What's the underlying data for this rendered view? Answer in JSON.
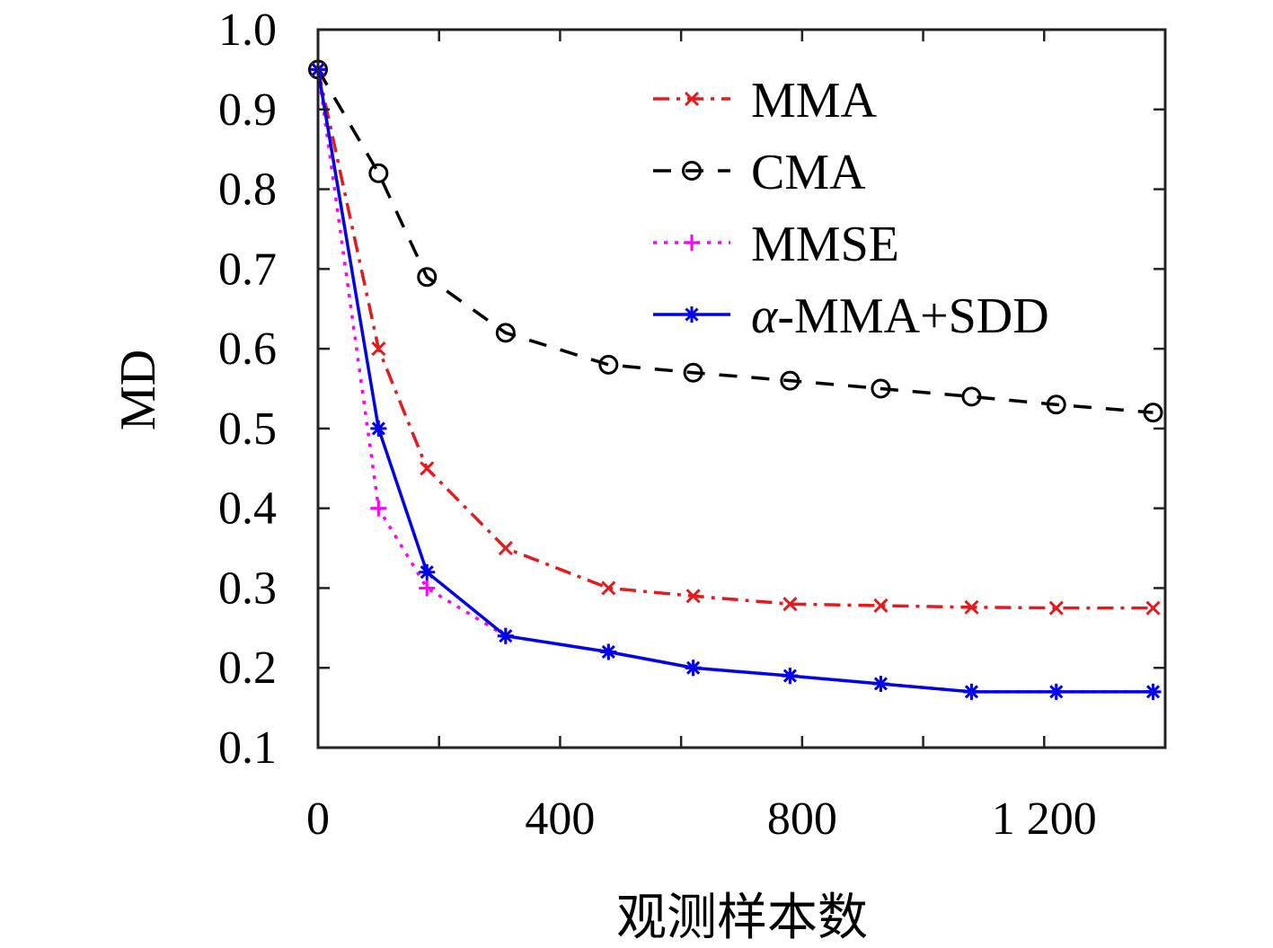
{
  "chart_data": {
    "type": "line",
    "title": "",
    "xlabel": "观测样本数",
    "ylabel": "MD",
    "xlim": [
      0,
      1400
    ],
    "ylim": [
      0.1,
      1.0
    ],
    "x_ticks": [
      0,
      400,
      800,
      1200
    ],
    "x_tick_labels": [
      "0",
      "400",
      "800",
      "1 200"
    ],
    "y_ticks": [
      0.1,
      0.2,
      0.3,
      0.4,
      0.5,
      0.6,
      0.7,
      0.8,
      0.9,
      1.0
    ],
    "y_tick_labels": [
      "0.1",
      "0.2",
      "0.3",
      "0.4",
      "0.5",
      "0.6",
      "0.7",
      "0.8",
      "0.9",
      "1.0"
    ],
    "grid": false,
    "legend_position": "top-right",
    "series": [
      {
        "name": "MMA",
        "color": "#e41a1c",
        "line_style": "dashdot",
        "marker": "x",
        "x": [
          0,
          100,
          180,
          310,
          480,
          620,
          780,
          930,
          1080,
          1220,
          1380
        ],
        "y": [
          0.95,
          0.6,
          0.45,
          0.35,
          0.3,
          0.29,
          0.28,
          0.278,
          0.276,
          0.275,
          0.275
        ]
      },
      {
        "name": "CMA",
        "color": "#000000",
        "line_style": "dashed",
        "marker": "o",
        "x": [
          0,
          100,
          180,
          310,
          480,
          620,
          780,
          930,
          1080,
          1220,
          1380
        ],
        "y": [
          0.95,
          0.82,
          0.69,
          0.62,
          0.58,
          0.57,
          0.56,
          0.55,
          0.54,
          0.53,
          0.52
        ]
      },
      {
        "name": "MMSE",
        "color": "#ff00ff",
        "line_style": "dotted",
        "marker": "+",
        "x": [
          0,
          100,
          180,
          310,
          480,
          620,
          780,
          930,
          1080,
          1220,
          1380
        ],
        "y": [
          0.95,
          0.4,
          0.3,
          0.24,
          0.22,
          0.2,
          0.19,
          0.18,
          0.17,
          0.17,
          0.17
        ]
      },
      {
        "name": "α-MMA+SDD",
        "color": "#0000ee",
        "line_style": "solid",
        "marker": "*",
        "x": [
          0,
          100,
          180,
          310,
          480,
          620,
          780,
          930,
          1080,
          1220,
          1380
        ],
        "y": [
          0.95,
          0.5,
          0.32,
          0.24,
          0.22,
          0.2,
          0.19,
          0.18,
          0.17,
          0.17,
          0.17
        ]
      }
    ]
  }
}
